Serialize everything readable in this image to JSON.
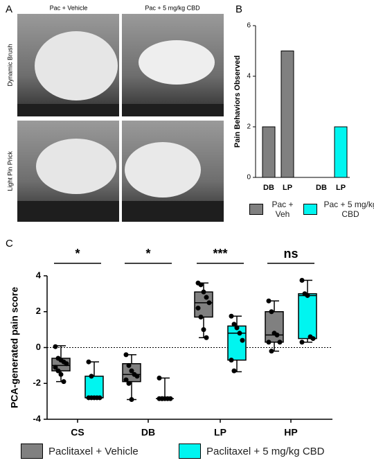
{
  "panel_a": {
    "panel_label": "A",
    "columns": [
      "Pac + Vehicle",
      "Pac + 5 mg/kg CBD"
    ],
    "rows": [
      "Dynamic Brush",
      "Light Pin Prick"
    ]
  },
  "chart_data": [
    {
      "type": "bar",
      "panel_label": "B",
      "y_label": "Pain Behaviors Observed",
      "categories": [
        "DB",
        "LP",
        "DB",
        "LP"
      ],
      "series": [
        {
          "name": "Pac + Veh",
          "color": "#808080",
          "values": [
            2,
            5,
            null,
            null
          ]
        },
        {
          "name": "Pac + 5 mg/kg CBD",
          "color": "#00f5f0",
          "values": [
            null,
            null,
            0,
            2
          ]
        }
      ],
      "ylim": [
        0,
        6
      ],
      "yticks": [
        0,
        2,
        4,
        6
      ]
    },
    {
      "type": "box",
      "panel_label": "C",
      "y_label": "PCA-generated pain score",
      "categories": [
        "CS",
        "DB",
        "LP",
        "HP"
      ],
      "annotations": [
        "*",
        "*",
        "***",
        "ns"
      ],
      "reference_line": 0,
      "series": [
        {
          "name": "Paclitaxel + Vehicle",
          "color": "#808080",
          "boxes": [
            {
              "min": -1.9,
              "q1": -1.3,
              "median": -1.0,
              "q3": -0.6,
              "max": 0.1
            },
            {
              "min": -2.9,
              "q1": -1.9,
              "median": -1.5,
              "q3": -0.9,
              "max": -0.4
            },
            {
              "min": 0.55,
              "q1": 1.7,
              "median": 2.5,
              "q3": 3.1,
              "max": 3.6
            },
            {
              "min": -0.2,
              "q1": 0.3,
              "median": 0.7,
              "q3": 2.0,
              "max": 2.6
            }
          ],
          "points": [
            [
              0.05,
              -0.6,
              -0.7,
              -0.8,
              -0.9,
              -1.1,
              -1.3,
              -1.5,
              -1.9
            ],
            [
              -0.4,
              -1.0,
              -1.3,
              -1.5,
              -1.6,
              -1.8,
              -2.0,
              -2.9
            ],
            [
              3.6,
              3.5,
              3.1,
              2.8,
              2.5,
              2.2,
              1.7,
              1.0,
              0.55
            ],
            [
              2.6,
              2.0,
              0.8,
              0.7,
              0.3,
              0.3,
              -0.2
            ]
          ]
        },
        {
          "name": "Paclitaxel + 5 mg/kg CBD",
          "color": "#00f5f0",
          "boxes": [
            {
              "min": -2.8,
              "q1": -2.8,
              "median": -2.8,
              "q3": -1.6,
              "max": -0.8
            },
            {
              "min": -2.85,
              "q1": -2.85,
              "median": -2.85,
              "q3": -2.85,
              "max": -1.7
            },
            {
              "min": -1.35,
              "q1": -0.7,
              "median": 0.8,
              "q3": 1.2,
              "max": 1.75
            },
            {
              "min": 0.3,
              "q1": 0.5,
              "median": 2.9,
              "q3": 3.0,
              "max": 3.75
            }
          ],
          "points": [
            [
              -0.8,
              -1.6,
              -2.8,
              -2.8,
              -2.8,
              -2.8,
              -2.8
            ],
            [
              -1.7,
              -2.85,
              -2.85,
              -2.85,
              -2.85,
              -2.85,
              -2.85
            ],
            [
              1.75,
              1.3,
              1.1,
              0.8,
              0.4,
              -0.7,
              -1.3
            ],
            [
              3.75,
              3.0,
              2.9,
              0.6,
              0.5,
              0.3
            ]
          ]
        }
      ],
      "ylim": [
        -4,
        4
      ],
      "yticks": [
        -4,
        -2,
        0,
        2,
        4
      ]
    }
  ]
}
